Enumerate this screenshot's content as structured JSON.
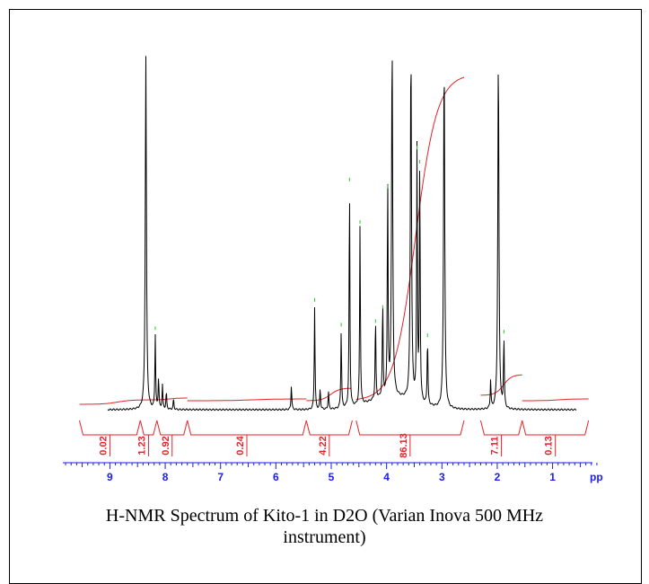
{
  "caption": {
    "line1": "H-NMR Spectrum of Kito-1 in D2O (Varian Inova 500 MHz",
    "line2": "instrument)"
  },
  "colors": {
    "spectrum": "#000000",
    "integral": "#e8202a",
    "peak_marker": "#22cc22",
    "axis": "#1a1aff"
  },
  "chart_data": {
    "type": "line",
    "title": "",
    "xlabel": "ppm",
    "xlim": [
      9.85,
      0.15
    ],
    "x_reversed": true,
    "axis_unit_visible": "pp",
    "x_ticks": [
      9,
      8,
      7,
      6,
      5,
      4,
      3,
      2,
      1
    ],
    "peaks": [
      {
        "ppm": 8.35,
        "height": 1.0
      },
      {
        "ppm": 8.18,
        "height": 0.21
      },
      {
        "ppm": 8.12,
        "height": 0.09
      },
      {
        "ppm": 8.05,
        "height": 0.07
      },
      {
        "ppm": 7.98,
        "height": 0.05
      },
      {
        "ppm": 7.85,
        "height": 0.03
      },
      {
        "ppm": 5.72,
        "height": 0.07
      },
      {
        "ppm": 5.3,
        "height": 0.29
      },
      {
        "ppm": 5.2,
        "height": 0.06
      },
      {
        "ppm": 5.05,
        "height": 0.05
      },
      {
        "ppm": 4.82,
        "height": 0.22
      },
      {
        "ppm": 4.67,
        "height": 0.63
      },
      {
        "ppm": 4.48,
        "height": 0.51
      },
      {
        "ppm": 4.2,
        "height": 0.23
      },
      {
        "ppm": 4.07,
        "height": 0.27
      },
      {
        "ppm": 3.98,
        "height": 0.61
      },
      {
        "ppm": 3.9,
        "height": 1.0
      },
      {
        "ppm": 3.56,
        "height": 1.0
      },
      {
        "ppm": 3.45,
        "height": 0.72
      },
      {
        "ppm": 3.4,
        "height": 0.68
      },
      {
        "ppm": 3.26,
        "height": 0.19
      },
      {
        "ppm": 2.96,
        "height": 1.0
      },
      {
        "ppm": 2.12,
        "height": 0.08
      },
      {
        "ppm": 1.98,
        "height": 1.0
      },
      {
        "ppm": 1.88,
        "height": 0.2
      }
    ],
    "integrals": [
      {
        "label": "0.02",
        "from": 9.55,
        "to": 8.45,
        "value": 0.02
      },
      {
        "label": "1.23",
        "from": 8.45,
        "to": 8.15,
        "value": 1.23
      },
      {
        "label": "0.92",
        "from": 8.15,
        "to": 7.6,
        "value": 0.92
      },
      {
        "label": "0.24",
        "from": 7.6,
        "to": 5.45,
        "value": 0.24
      },
      {
        "label": "4.22",
        "from": 5.45,
        "to": 4.62,
        "value": 4.22
      },
      {
        "label": "86.13",
        "from": 4.55,
        "to": 2.6,
        "value": 86.13
      },
      {
        "label": "7.11",
        "from": 2.3,
        "to": 1.55,
        "value": 7.11
      },
      {
        "label": "0.13",
        "from": 1.55,
        "to": 0.35,
        "value": 0.13
      }
    ]
  }
}
